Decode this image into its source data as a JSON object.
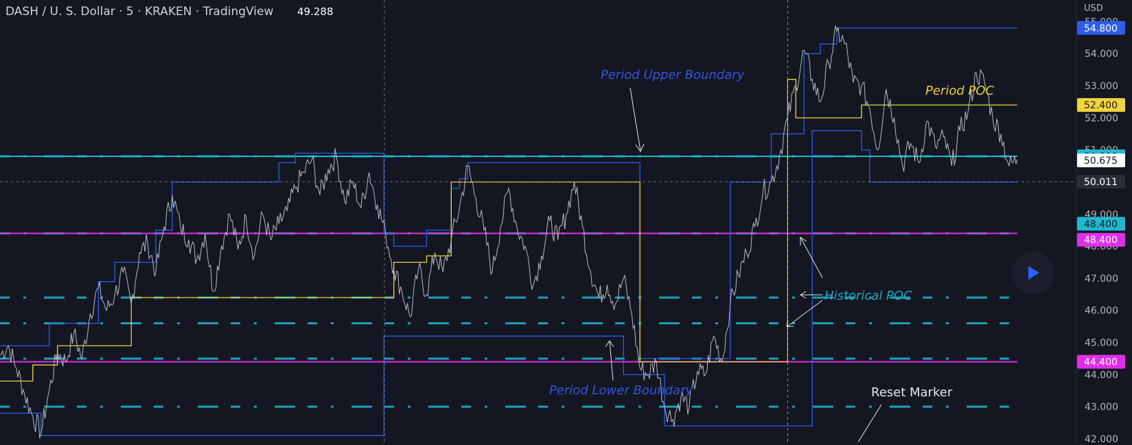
{
  "header": {
    "title": "DASH / U. S. Dollar · 5 · KRAKEN · TradingView",
    "last_price": "49.288"
  },
  "colors": {
    "background": "#141722",
    "price": "#b8bcc6",
    "boundary": "#2f5de8",
    "period_poc": "#f4d33c",
    "historical_poc": "#20b8cf",
    "level": "#e02ee8",
    "annotation_blue": "#3456e0",
    "annotation_yellow": "#f0cc3a",
    "annotation_cyan": "#22a6c4",
    "annotation_white": "#e8e8ea"
  },
  "chart_data": {
    "type": "line",
    "currency": "USD",
    "ylim": [
      42.0,
      55.5
    ],
    "y_ticks": [
      "42.000",
      "43.000",
      "44.000",
      "45.000",
      "46.000",
      "47.000",
      "48.000",
      "49.000",
      "50.000",
      "51.000",
      "52.000",
      "53.000",
      "54.000",
      "55.000"
    ],
    "price_series": [
      {
        "x": 0,
        "y": 44.6
      },
      {
        "x": 5,
        "y": 44.9
      },
      {
        "x": 10,
        "y": 44.2
      },
      {
        "x": 15,
        "y": 43.4
      },
      {
        "x": 20,
        "y": 42.7
      },
      {
        "x": 25,
        "y": 42.2
      },
      {
        "x": 30,
        "y": 43.5
      },
      {
        "x": 35,
        "y": 44.7
      },
      {
        "x": 40,
        "y": 44.4
      },
      {
        "x": 45,
        "y": 45.3
      },
      {
        "x": 50,
        "y": 44.5
      },
      {
        "x": 55,
        "y": 45.9
      },
      {
        "x": 60,
        "y": 46.7
      },
      {
        "x": 65,
        "y": 46.0
      },
      {
        "x": 70,
        "y": 46.5
      },
      {
        "x": 75,
        "y": 47.2
      },
      {
        "x": 80,
        "y": 46.2
      },
      {
        "x": 85,
        "y": 47.8
      },
      {
        "x": 90,
        "y": 48.1
      },
      {
        "x": 95,
        "y": 47.2
      },
      {
        "x": 100,
        "y": 48.6
      },
      {
        "x": 105,
        "y": 49.6
      },
      {
        "x": 110,
        "y": 48.6
      },
      {
        "x": 115,
        "y": 48.2
      },
      {
        "x": 120,
        "y": 47.6
      },
      {
        "x": 125,
        "y": 48.4
      },
      {
        "x": 130,
        "y": 46.6
      },
      {
        "x": 135,
        "y": 48.0
      },
      {
        "x": 140,
        "y": 49.0
      },
      {
        "x": 145,
        "y": 47.9
      },
      {
        "x": 150,
        "y": 48.9
      },
      {
        "x": 155,
        "y": 47.7
      },
      {
        "x": 160,
        "y": 49.0
      },
      {
        "x": 165,
        "y": 48.2
      },
      {
        "x": 170,
        "y": 48.7
      },
      {
        "x": 175,
        "y": 49.1
      },
      {
        "x": 180,
        "y": 49.8
      },
      {
        "x": 185,
        "y": 50.3
      },
      {
        "x": 190,
        "y": 50.7
      },
      {
        "x": 195,
        "y": 49.6
      },
      {
        "x": 200,
        "y": 50.4
      },
      {
        "x": 205,
        "y": 50.8
      },
      {
        "x": 210,
        "y": 49.4
      },
      {
        "x": 215,
        "y": 50.0
      },
      {
        "x": 220,
        "y": 49.2
      },
      {
        "x": 225,
        "y": 50.3
      },
      {
        "x": 230,
        "y": 49.3
      },
      {
        "x": 235,
        "y": 48.4
      },
      {
        "x": 240,
        "y": 47.3
      },
      {
        "x": 245,
        "y": 46.6
      },
      {
        "x": 250,
        "y": 45.8
      },
      {
        "x": 255,
        "y": 47.3
      },
      {
        "x": 260,
        "y": 46.5
      },
      {
        "x": 265,
        "y": 47.8
      },
      {
        "x": 270,
        "y": 47.2
      },
      {
        "x": 275,
        "y": 48.2
      },
      {
        "x": 280,
        "y": 49.2
      },
      {
        "x": 285,
        "y": 50.5
      },
      {
        "x": 290,
        "y": 49.5
      },
      {
        "x": 295,
        "y": 48.5
      },
      {
        "x": 300,
        "y": 47.2
      },
      {
        "x": 305,
        "y": 48.6
      },
      {
        "x": 310,
        "y": 49.8
      },
      {
        "x": 315,
        "y": 48.6
      },
      {
        "x": 320,
        "y": 48.0
      },
      {
        "x": 325,
        "y": 46.8
      },
      {
        "x": 330,
        "y": 47.7
      },
      {
        "x": 335,
        "y": 48.8
      },
      {
        "x": 340,
        "y": 48.2
      },
      {
        "x": 345,
        "y": 49.0
      },
      {
        "x": 350,
        "y": 50.0
      },
      {
        "x": 355,
        "y": 48.6
      },
      {
        "x": 360,
        "y": 47.2
      },
      {
        "x": 365,
        "y": 46.4
      },
      {
        "x": 370,
        "y": 46.8
      },
      {
        "x": 375,
        "y": 46.2
      },
      {
        "x": 380,
        "y": 47.0
      },
      {
        "x": 385,
        "y": 45.9
      },
      {
        "x": 390,
        "y": 44.2
      },
      {
        "x": 395,
        "y": 44.0
      },
      {
        "x": 400,
        "y": 44.4
      },
      {
        "x": 405,
        "y": 43.0
      },
      {
        "x": 410,
        "y": 42.6
      },
      {
        "x": 415,
        "y": 43.3
      },
      {
        "x": 420,
        "y": 43.0
      },
      {
        "x": 425,
        "y": 44.1
      },
      {
        "x": 430,
        "y": 44.0
      },
      {
        "x": 435,
        "y": 45.2
      },
      {
        "x": 440,
        "y": 44.4
      },
      {
        "x": 445,
        "y": 46.2
      },
      {
        "x": 450,
        "y": 47.1
      },
      {
        "x": 455,
        "y": 47.8
      },
      {
        "x": 460,
        "y": 48.6
      },
      {
        "x": 465,
        "y": 49.7
      },
      {
        "x": 470,
        "y": 50.0
      },
      {
        "x": 475,
        "y": 50.8
      },
      {
        "x": 480,
        "y": 52.0
      },
      {
        "x": 485,
        "y": 53.0
      },
      {
        "x": 490,
        "y": 54.1
      },
      {
        "x": 495,
        "y": 53.2
      },
      {
        "x": 500,
        "y": 52.5
      },
      {
        "x": 505,
        "y": 53.7
      },
      {
        "x": 510,
        "y": 54.7
      },
      {
        "x": 515,
        "y": 54.3
      },
      {
        "x": 520,
        "y": 53.1
      },
      {
        "x": 525,
        "y": 53.0
      },
      {
        "x": 530,
        "y": 52.3
      },
      {
        "x": 535,
        "y": 51.0
      },
      {
        "x": 540,
        "y": 52.9
      },
      {
        "x": 545,
        "y": 52.0
      },
      {
        "x": 550,
        "y": 50.5
      },
      {
        "x": 555,
        "y": 51.2
      },
      {
        "x": 560,
        "y": 50.6
      },
      {
        "x": 565,
        "y": 51.9
      },
      {
        "x": 570,
        "y": 51.1
      },
      {
        "x": 575,
        "y": 51.4
      },
      {
        "x": 580,
        "y": 50.5
      },
      {
        "x": 585,
        "y": 51.6
      },
      {
        "x": 590,
        "y": 52.2
      },
      {
        "x": 595,
        "y": 53.4
      },
      {
        "x": 600,
        "y": 53.1
      },
      {
        "x": 605,
        "y": 52.0
      },
      {
        "x": 610,
        "y": 51.5
      },
      {
        "x": 615,
        "y": 50.5
      },
      {
        "x": 620,
        "y": 50.7
      }
    ],
    "upper_boundary_steps": [
      {
        "x": 0,
        "y": 44.9
      },
      {
        "x": 30,
        "y": 45.6
      },
      {
        "x": 60,
        "y": 46.9
      },
      {
        "x": 70,
        "y": 47.5
      },
      {
        "x": 95,
        "y": 48.5
      },
      {
        "x": 105,
        "y": 50.0
      },
      {
        "x": 170,
        "y": 50.6
      },
      {
        "x": 180,
        "y": 50.9
      },
      {
        "x": 234,
        "y": 48.4
      },
      {
        "x": 240,
        "y": 48.0
      },
      {
        "x": 260,
        "y": 48.5
      },
      {
        "x": 275,
        "y": 49.8
      },
      {
        "x": 280,
        "y": 50.1
      },
      {
        "x": 285,
        "y": 50.6
      },
      {
        "x": 390,
        "y": 44.5
      },
      {
        "x": 445,
        "y": 50.0
      },
      {
        "x": 470,
        "y": 51.5
      },
      {
        "x": 490,
        "y": 54.0
      },
      {
        "x": 500,
        "y": 54.3
      },
      {
        "x": 510,
        "y": 54.8
      },
      {
        "x": 620,
        "y": 54.8
      }
    ],
    "lower_boundary_steps": [
      {
        "x": 0,
        "y": 42.8
      },
      {
        "x": 25,
        "y": 42.1
      },
      {
        "x": 234,
        "y": 42.1
      },
      {
        "x": 234,
        "y": 45.2
      },
      {
        "x": 380,
        "y": 45.2
      },
      {
        "x": 380,
        "y": 44.0
      },
      {
        "x": 405,
        "y": 42.4
      },
      {
        "x": 480,
        "y": 42.4
      },
      {
        "x": 495,
        "y": 51.6
      },
      {
        "x": 525,
        "y": 51.0
      },
      {
        "x": 530,
        "y": 50.0
      },
      {
        "x": 620,
        "y": 50.0
      }
    ],
    "period_poc_steps": [
      {
        "x": 0,
        "y": 43.8
      },
      {
        "x": 20,
        "y": 44.3
      },
      {
        "x": 35,
        "y": 44.9
      },
      {
        "x": 80,
        "y": 46.4
      },
      {
        "x": 234,
        "y": 46.4
      },
      {
        "x": 240,
        "y": 47.5
      },
      {
        "x": 260,
        "y": 47.7
      },
      {
        "x": 275,
        "y": 50.0
      },
      {
        "x": 390,
        "y": 50.0
      },
      {
        "x": 390,
        "y": 44.4
      },
      {
        "x": 480,
        "y": 44.4
      },
      {
        "x": 480,
        "y": 53.2
      },
      {
        "x": 485,
        "y": 52.0
      },
      {
        "x": 520,
        "y": 52.0
      },
      {
        "x": 525,
        "y": 52.4
      },
      {
        "x": 620,
        "y": 52.4
      }
    ],
    "historical_poc_levels": [
      50.8,
      48.4,
      46.4,
      45.6,
      44.5,
      43.0
    ],
    "horizontal_levels": [
      {
        "y": 48.4,
        "color": "#e02ee8"
      },
      {
        "y": 44.4,
        "color": "#e02ee8"
      },
      {
        "y": 50.8,
        "color": "#20b8cf"
      }
    ],
    "crosshair": {
      "x": 232,
      "y": 50.011
    },
    "reset_marker_x": 480,
    "price_labels": [
      {
        "text": "54.800",
        "y": 54.8,
        "bg": "#2f5de8",
        "fg": "#ffffff"
      },
      {
        "text": "52.400",
        "y": 52.4,
        "bg": "#f4d33c",
        "fg": "#141722"
      },
      {
        "text": "50.800",
        "y": 50.8,
        "bg": "#20b8cf",
        "fg": "#141722"
      },
      {
        "text": "50.675",
        "y": 50.675,
        "bg": "#ffffff",
        "fg": "#141722"
      },
      {
        "text": "50.011",
        "y": 50.011,
        "bg": "#2a2e39",
        "fg": "#ffffff"
      },
      {
        "text": "48.400",
        "y": 48.7,
        "bg": "#20b8cf",
        "fg": "#141722"
      },
      {
        "text": "48.400",
        "y": 48.2,
        "bg": "#e02ee8",
        "fg": "#ffffff"
      },
      {
        "text": "44.400",
        "y": 44.4,
        "bg": "#e02ee8",
        "fg": "#ffffff"
      }
    ]
  },
  "annotations": {
    "period_upper_boundary": "Period Upper Boundary",
    "period_poc": "Period POC",
    "historical_poc": "Historical POC",
    "period_lower_boundary": "Period Lower Boundary",
    "reset_marker": "Reset Marker"
  }
}
